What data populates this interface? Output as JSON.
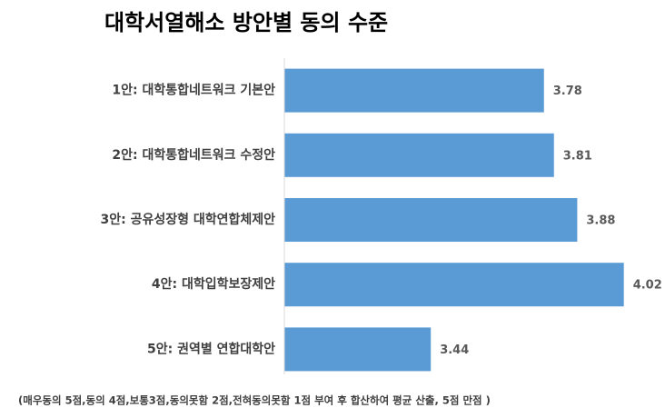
{
  "chart_data": {
    "type": "bar",
    "orientation": "horizontal",
    "title": "대학서열해소 방안별 동의 수준",
    "categories": [
      "1안: 대학통합네트워크 기본안",
      "2안: 대학통합네트워크 수정안",
      "3안: 공유성장형 대학연합체제안",
      "4안: 대학입학보장제안",
      "5안: 권역별 연합대학안"
    ],
    "values": [
      3.78,
      3.81,
      3.88,
      4.02,
      3.44
    ],
    "color": "#5b9bd5",
    "xlim": [
      3,
      4.1
    ],
    "note": "(매우동의 5점,동의 4점,보통3점,동의못함 2점,전혀동의못함 1점 부여 후 합산하여 평균 산출, 5점 만점 )"
  }
}
